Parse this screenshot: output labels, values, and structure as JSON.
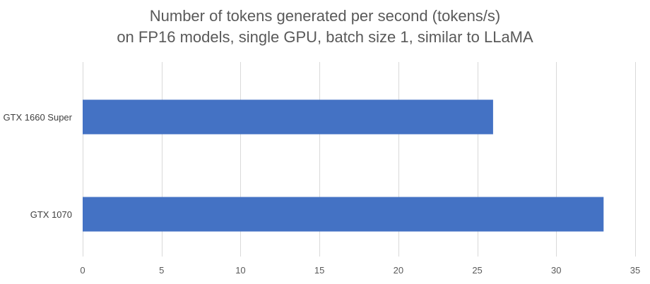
{
  "chart_data": {
    "type": "bar",
    "orientation": "horizontal",
    "title_lines": [
      "Number of tokens generated per second (tokens/s)",
      "on FP16 models, single GPU, batch size 1, similar to LLaMA"
    ],
    "categories": [
      "GTX 1660 Super",
      "GTX 1070"
    ],
    "values": [
      26,
      33
    ],
    "xlim": [
      0,
      35
    ],
    "xticks": [
      0,
      5,
      10,
      15,
      20,
      25,
      30,
      35
    ],
    "grid": "vertical",
    "legend": "none",
    "bar_color": "#4472C4",
    "grid_color": "#D9D9D9"
  }
}
